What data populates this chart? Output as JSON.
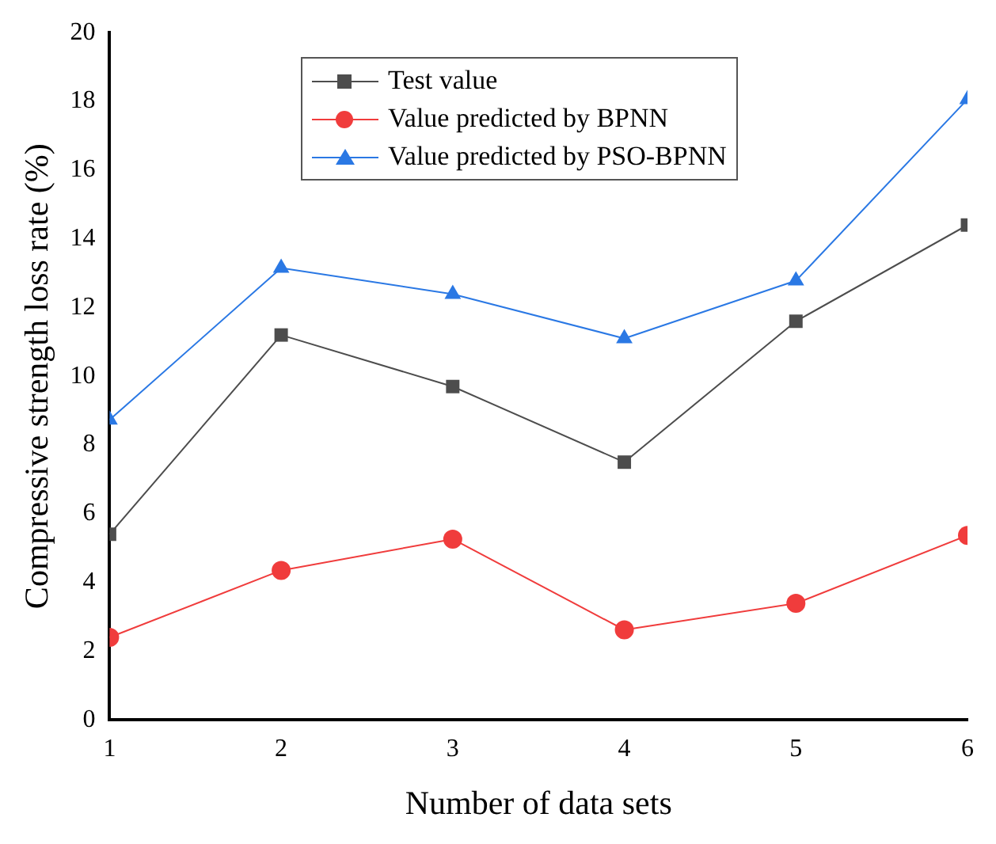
{
  "chart_data": {
    "type": "line",
    "xlabel": "Number of data sets",
    "ylabel": "Compressive strength loss rate (%)",
    "x": [
      1,
      2,
      3,
      4,
      5,
      6
    ],
    "xlim": [
      1,
      6
    ],
    "xticks": [
      1,
      2,
      3,
      4,
      5,
      6
    ],
    "ylim": [
      0,
      20
    ],
    "yticks": [
      0,
      2,
      4,
      6,
      8,
      10,
      12,
      14,
      16,
      18,
      20
    ],
    "grid": false,
    "legend": "top",
    "series": [
      {
        "name": "Test value",
        "color": "#4d4d4d",
        "marker": "square",
        "values": [
          5.4,
          11.2,
          9.7,
          7.5,
          11.6,
          14.4
        ]
      },
      {
        "name": "Value predicted by BPNN",
        "color": "#f03c3c",
        "marker": "circle",
        "values": [
          2.4,
          4.35,
          5.26,
          2.62,
          3.39,
          5.37
        ]
      },
      {
        "name": "Value predicted by PSO-BPNN",
        "color": "#2a78e4",
        "marker": "triangle",
        "values": [
          8.73,
          13.15,
          12.39,
          11.1,
          12.78,
          18.06
        ]
      }
    ]
  }
}
